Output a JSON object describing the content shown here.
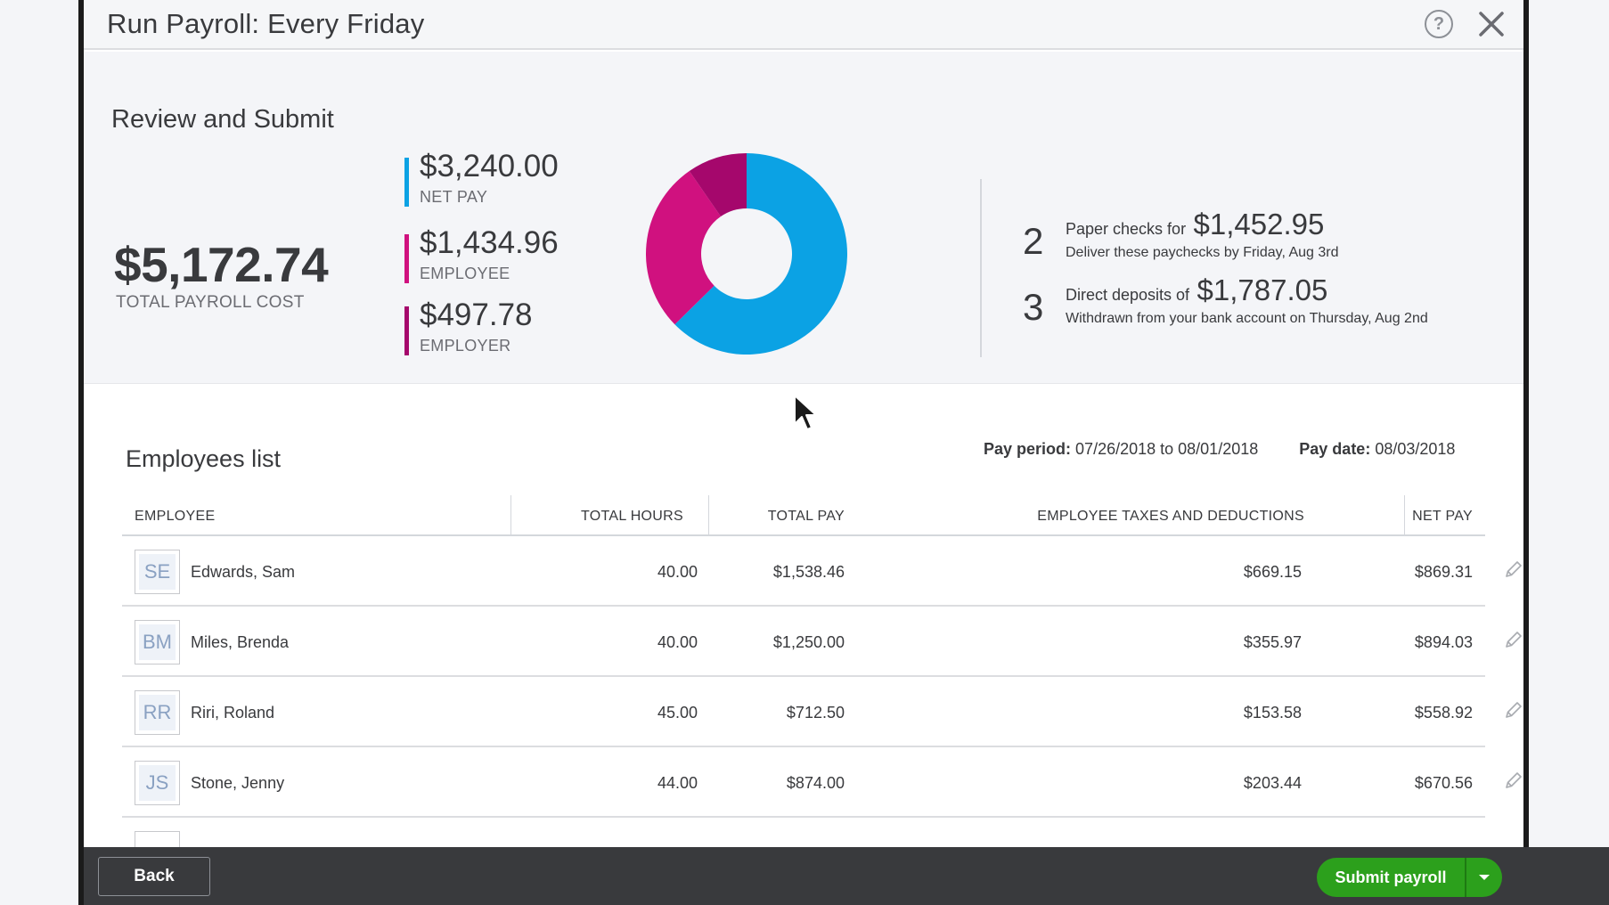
{
  "header": {
    "title": "Run Payroll: Every Friday"
  },
  "summary": {
    "section_title": "Review and Submit",
    "total": {
      "amount": "$5,172.74",
      "label": "TOTAL PAYROLL COST"
    },
    "breakdown": [
      {
        "amount": "$3,240.00",
        "label": "NET PAY",
        "color": "#0ba2e4"
      },
      {
        "amount": "$1,434.96",
        "label": "EMPLOYEE",
        "color": "#d0117f"
      },
      {
        "amount": "$497.78",
        "label": "EMPLOYER",
        "color": "#a5076c"
      }
    ],
    "payment_methods": [
      {
        "count": "2",
        "text": "Paper checks for",
        "amount": "$1,452.95",
        "sub": "Deliver these paychecks by Friday, Aug 3rd"
      },
      {
        "count": "3",
        "text": "Direct deposits of",
        "amount": "$1,787.05",
        "sub": "Withdrawn from your bank account on Thursday, Aug 2nd"
      }
    ]
  },
  "chart_data": {
    "type": "pie",
    "style": "donut",
    "categories": [
      "NET PAY",
      "EMPLOYEE",
      "EMPLOYER"
    ],
    "values": [
      3240.0,
      1434.96,
      497.78
    ],
    "colors": [
      "#0ba2e4",
      "#d0117f",
      "#a5076c"
    ]
  },
  "employees": {
    "title": "Employees list",
    "pay_period_label": "Pay period:",
    "pay_period_value": "07/26/2018 to 08/01/2018",
    "pay_date_label": "Pay date:",
    "pay_date_value": "08/03/2018",
    "columns": {
      "employee": "EMPLOYEE",
      "total_hours": "TOTAL HOURS",
      "total_pay": "TOTAL PAY",
      "taxes": "EMPLOYEE TAXES AND DEDUCTIONS",
      "net_pay": "NET PAY"
    },
    "rows": [
      {
        "initials": "SE",
        "name": "Edwards, Sam",
        "hours": "40.00",
        "total_pay": "$1,538.46",
        "taxes": "$669.15",
        "net_pay": "$869.31"
      },
      {
        "initials": "BM",
        "name": "Miles, Brenda",
        "hours": "40.00",
        "total_pay": "$1,250.00",
        "taxes": "$355.97",
        "net_pay": "$894.03"
      },
      {
        "initials": "RR",
        "name": "Riri, Roland",
        "hours": "45.00",
        "total_pay": "$712.50",
        "taxes": "$153.58",
        "net_pay": "$558.92"
      },
      {
        "initials": "JS",
        "name": "Stone, Jenny",
        "hours": "44.00",
        "total_pay": "$874.00",
        "taxes": "$203.44",
        "net_pay": "$670.56"
      }
    ]
  },
  "footer": {
    "back_label": "Back",
    "submit_label": "Submit payroll"
  }
}
